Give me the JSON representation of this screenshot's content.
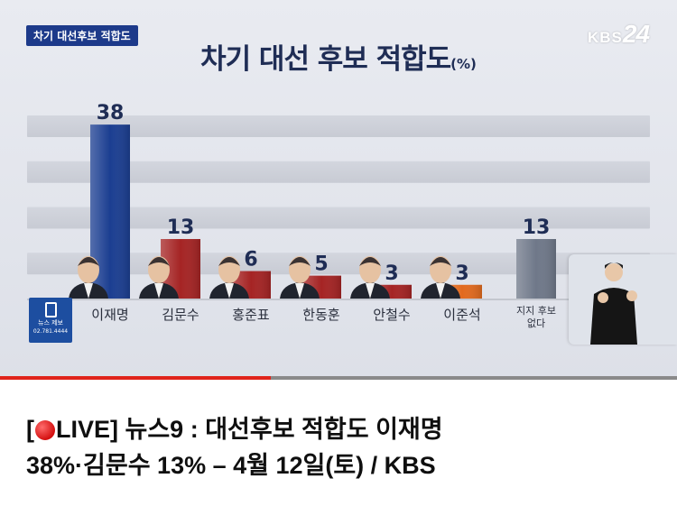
{
  "broadcast": {
    "tag": "차기 대선후보 적합도",
    "logo_text": "KBS",
    "logo_num": "24",
    "title": "차기 대선 후보 적합도",
    "title_unit": "(%)",
    "news_box": {
      "line1": "뉴스 제보",
      "line2": "02.781.4444"
    }
  },
  "chart_data": {
    "type": "bar",
    "title": "차기 대선 후보 적합도",
    "unit": "%",
    "categories": [
      "이재명",
      "김문수",
      "홍준표",
      "한동훈",
      "안철수",
      "이준석",
      "지지 후보\n없다"
    ],
    "values": [
      38,
      13,
      6,
      5,
      3,
      3,
      13
    ],
    "colors": [
      "#1b3e91",
      "#a52424",
      "#a52424",
      "#a52424",
      "#a52424",
      "#e26a1e",
      "#6f7889"
    ],
    "ylim": [
      0,
      40
    ],
    "grid": true,
    "legend": "none"
  },
  "caption": {
    "prefix": "[",
    "live": "LIVE] 뉴스9 : 대선후보 적합도 이재명",
    "line2": "38%·김문수 13% – 4월 12일(토) / KBS"
  },
  "colors": {
    "accent_blue": "#1d3a8a",
    "live_red": "#e0241b"
  },
  "video": {
    "progress": 0.4
  }
}
